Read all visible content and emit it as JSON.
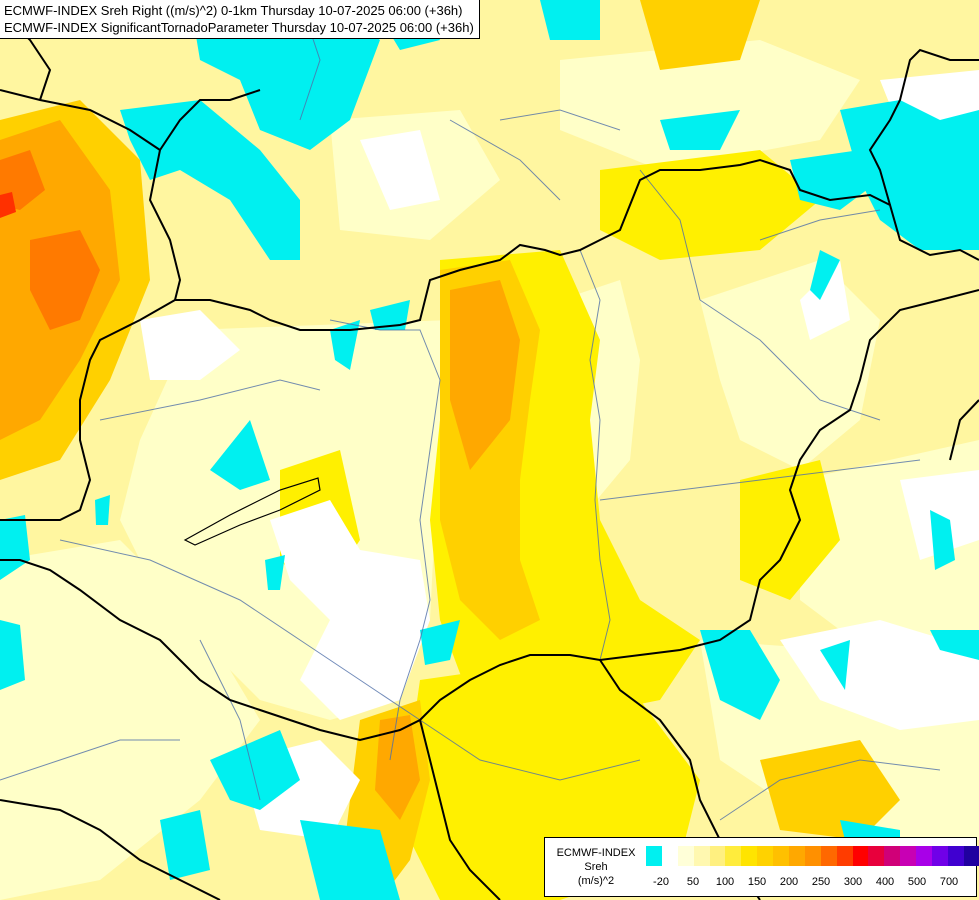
{
  "titles": {
    "line1": "ECMWF-INDEX Sreh Right ((m/s)^2) 0-1km Thursday 10-07-2025 06:00 (+36h)",
    "line2": "ECMWF-INDEX SignificantTornadoParameter Thursday 10-07-2025 06:00 (+36h)"
  },
  "legend": {
    "line1": "ECMWF-INDEX",
    "line2": "Sreh",
    "line3": "(m/s)^2",
    "colors": [
      "#00f0f0",
      "#ffffff",
      "#ffffd8",
      "#fff8b0",
      "#fff080",
      "#ffec3c",
      "#ffe400",
      "#ffd200",
      "#ffc000",
      "#ffa800",
      "#ff9000",
      "#ff6800",
      "#ff3c00",
      "#ff0000",
      "#e8003c",
      "#d00078",
      "#c800b4",
      "#a800e8",
      "#7000e8",
      "#4000d0",
      "#2000a0",
      "#000070"
    ],
    "ticks": [
      "-20",
      "50",
      "100",
      "150",
      "200",
      "250",
      "300",
      "400",
      "500",
      "700"
    ]
  },
  "map_colors": {
    "cyan": "#00f0f0",
    "white": "#ffffff",
    "pale": "#ffffc8",
    "light": "#fff8a0",
    "yellow": "#fff000",
    "gold": "#ffd800",
    "amber": "#ffc400",
    "orange": "#ffa800",
    "deep_orange": "#ff7a00",
    "red": "#ff3000",
    "border": "#000000",
    "river": "#4f6fa8"
  }
}
